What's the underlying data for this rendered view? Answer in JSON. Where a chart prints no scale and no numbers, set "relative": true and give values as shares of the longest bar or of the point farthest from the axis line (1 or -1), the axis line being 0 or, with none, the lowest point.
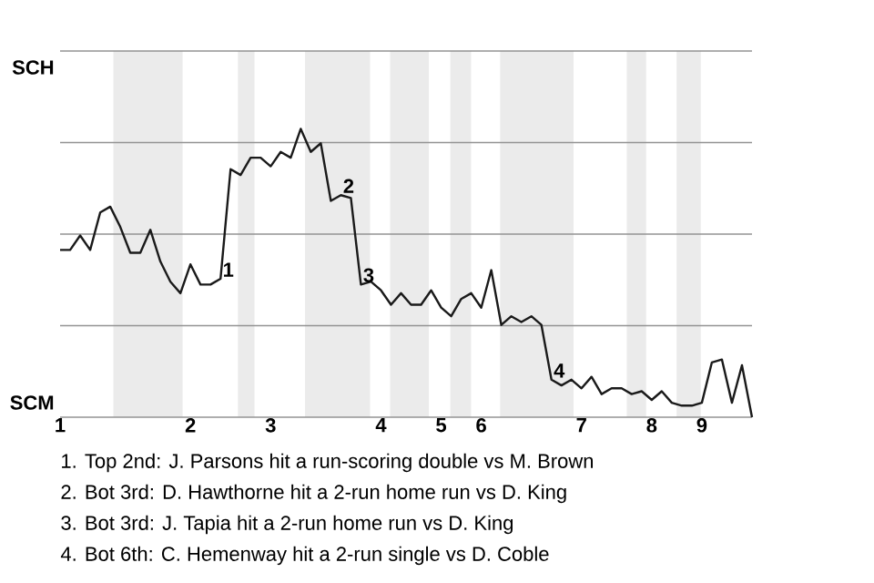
{
  "chart_data": {
    "type": "line",
    "relative": true,
    "categories": [
      "1",
      null,
      null,
      null,
      null,
      null,
      null,
      null,
      null,
      null,
      null,
      null,
      null,
      "2",
      null,
      null,
      null,
      null,
      null,
      null,
      null,
      "3",
      null,
      null,
      null,
      null,
      null,
      null,
      null,
      null,
      null,
      null,
      "4",
      null,
      null,
      null,
      null,
      null,
      "5",
      null,
      null,
      null,
      "6",
      null,
      null,
      null,
      null,
      null,
      null,
      null,
      null,
      null,
      "7",
      null,
      null,
      null,
      null,
      null,
      null,
      "8",
      null,
      null,
      null,
      null,
      "9",
      null,
      null,
      null,
      null,
      null
    ],
    "series": [
      {
        "color": "#1a1a1a",
        "values": [
          0.58,
          0.58,
          0.63,
          0.58,
          0.71,
          0.73,
          0.66,
          0.57,
          0.57,
          0.65,
          0.54,
          0.47,
          0.43,
          0.53,
          0.46,
          0.46,
          0.48,
          0.86,
          0.84,
          0.9,
          0.9,
          0.87,
          0.92,
          0.9,
          1,
          0.92,
          0.95,
          0.75,
          0.77,
          0.76,
          0.46,
          0.47,
          0.44,
          0.39,
          0.43,
          0.39,
          0.39,
          0.44,
          0.38,
          0.35,
          0.41,
          0.43,
          0.38,
          0.51,
          0.32,
          0.35,
          0.33,
          0.35,
          0.32,
          0.13,
          0.11,
          0.13,
          0.1,
          0.14,
          0.08,
          0.1,
          0.1,
          0.08,
          0.09,
          0.06,
          0.09,
          0.05,
          0.04,
          0.04,
          0.05,
          0.19,
          0.2,
          0.05,
          0.18,
          0
        ]
      }
    ],
    "grid": "y",
    "annotations": [
      {
        "text": "1",
        "y": 0.48
      },
      {
        "text": "2",
        "y": 0.77
      },
      {
        "text": "3",
        "y": 0.46
      },
      {
        "text": "4",
        "y": 0.13
      },
      "SCH",
      "SCM",
      "1. Top 2nd: J. Parsons hit a run-scoring double vs M. Brown",
      "2. Bot 3rd: D. Hawthorne hit a 2-run home run vs D. King",
      "3. Bot 3rd: J. Tapia hit a 2-run home run vs D. King",
      "4. Bot 6th: C. Hemenway hit a 2-run single vs D. Coble"
    ]
  }
}
